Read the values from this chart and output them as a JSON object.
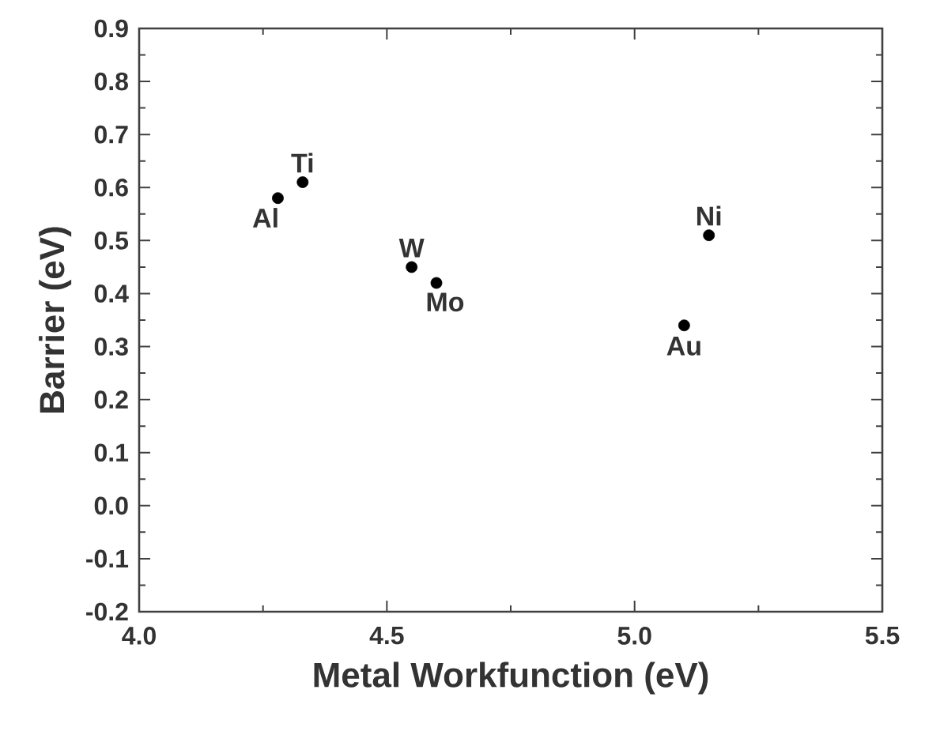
{
  "chart_data": {
    "type": "scatter",
    "xlabel": "Metal Workfunction  (eV)",
    "ylabel": "Barrier  (eV)",
    "x": [
      4.28,
      4.33,
      4.55,
      4.6,
      5.1,
      5.15
    ],
    "values": [
      0.58,
      0.61,
      0.45,
      0.42,
      0.34,
      0.51
    ],
    "color": "#000000",
    "marker": "circle",
    "xlim": [
      4.0,
      5.5
    ],
    "ylim": [
      -0.2,
      0.9
    ],
    "xticks": [
      {
        "value": 4.0,
        "label": "4.0"
      },
      {
        "value": 4.5,
        "label": "4.5"
      },
      {
        "value": 5.0,
        "label": "5.0"
      },
      {
        "value": 5.5,
        "label": "5.5"
      }
    ],
    "yticks": [
      {
        "value": -0.2,
        "label": "-0.2"
      },
      {
        "value": -0.1,
        "label": "-0.1"
      },
      {
        "value": 0.0,
        "label": "0.0"
      },
      {
        "value": 0.1,
        "label": "0.1"
      },
      {
        "value": 0.2,
        "label": "0.2"
      },
      {
        "value": 0.3,
        "label": "0.3"
      },
      {
        "value": 0.4,
        "label": "0.4"
      },
      {
        "value": 0.5,
        "label": "0.5"
      },
      {
        "value": 0.6,
        "label": "0.6"
      },
      {
        "value": 0.7,
        "label": "0.7"
      },
      {
        "value": 0.8,
        "label": "0.8"
      },
      {
        "value": 0.9,
        "label": "0.9"
      }
    ],
    "annotations": [
      {
        "text": "Al",
        "x": 4.28,
        "y": 0.58
      },
      {
        "text": "Ti",
        "x": 4.33,
        "y": 0.61
      },
      {
        "text": "W",
        "x": 4.55,
        "y": 0.45
      },
      {
        "text": "Mo",
        "x": 4.6,
        "y": 0.42
      },
      {
        "text": "Au",
        "x": 5.1,
        "y": 0.34
      },
      {
        "text": "Ni",
        "x": 5.15,
        "y": 0.51
      }
    ]
  }
}
